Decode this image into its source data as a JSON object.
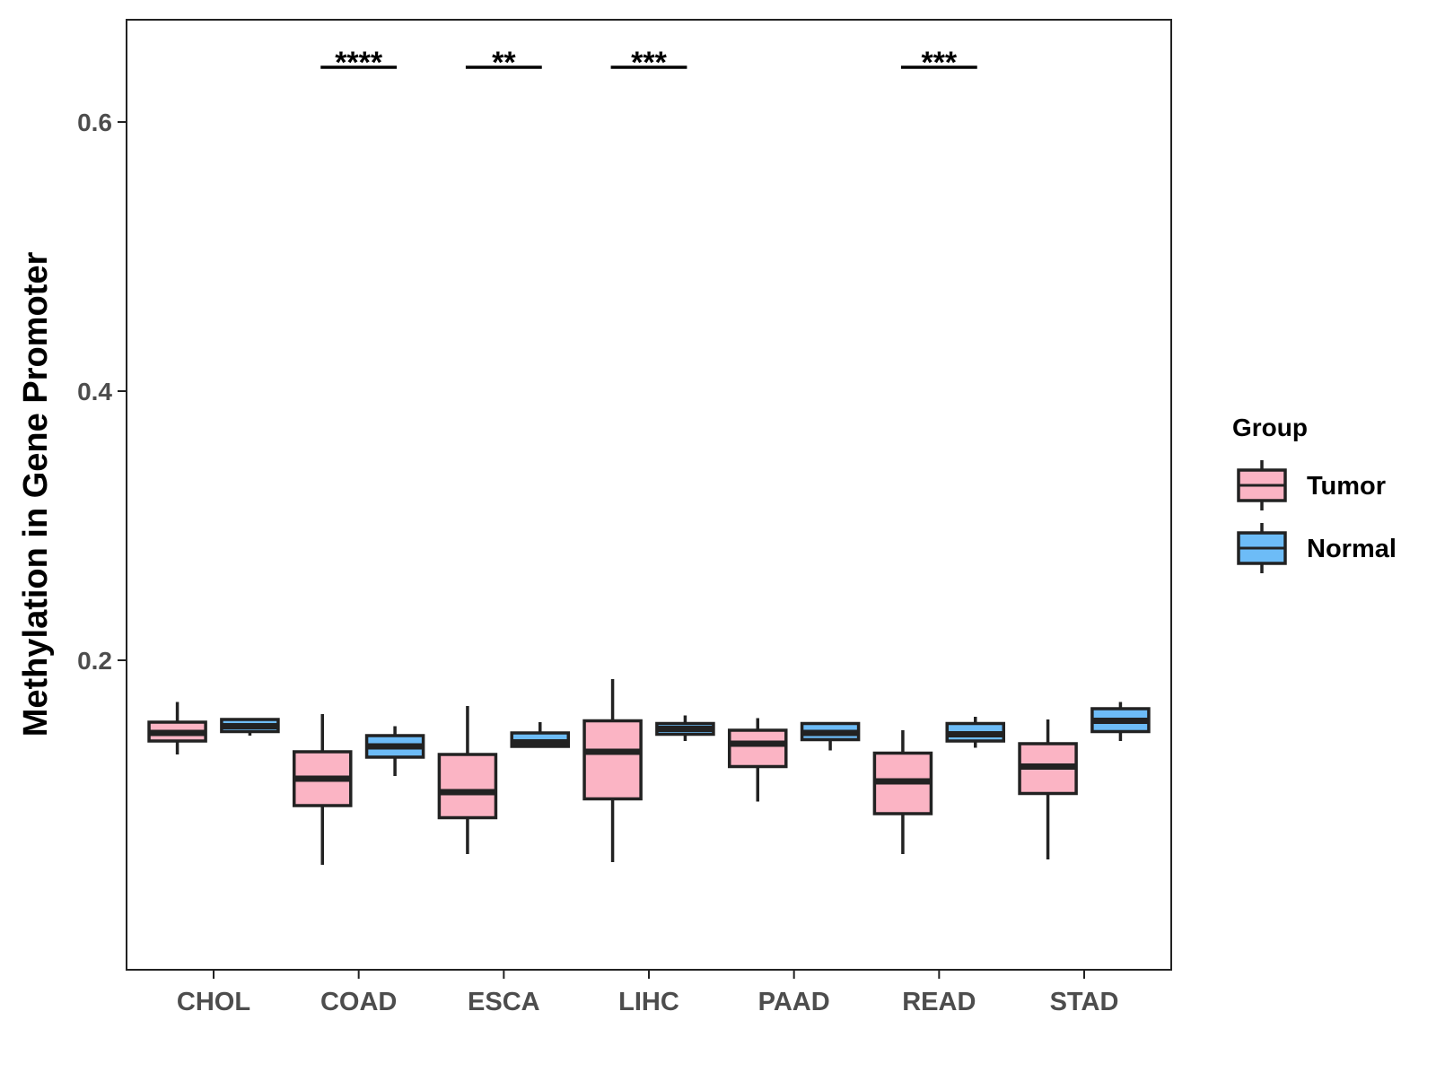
{
  "chart_data": {
    "type": "boxplot",
    "title": "",
    "xlabel": "",
    "ylabel": "Methylation in Gene Promoter",
    "ylim": [
      -0.03,
      0.676
    ],
    "yticks": [
      0.2,
      0.4,
      0.6
    ],
    "ytick_labels": [
      "0.2",
      "0.4",
      "0.6"
    ],
    "grid": false,
    "legend": {
      "title": "Group",
      "position": "right",
      "entries": [
        {
          "name": "Tumor",
          "color": "#fbb4c4"
        },
        {
          "name": "Normal",
          "color": "#6dbcf7"
        }
      ]
    },
    "categories": [
      "CHOL",
      "COAD",
      "ESCA",
      "LIHC",
      "PAAD",
      "READ",
      "STAD"
    ],
    "series": [
      {
        "name": "Tumor",
        "color": "#fbb4c4",
        "boxes": [
          {
            "category": "CHOL",
            "min": 0.13,
            "q1": 0.14,
            "median": 0.146,
            "q3": 0.154,
            "max": 0.169
          },
          {
            "category": "COAD",
            "min": 0.048,
            "q1": 0.092,
            "median": 0.112,
            "q3": 0.132,
            "max": 0.16
          },
          {
            "category": "ESCA",
            "min": 0.056,
            "q1": 0.083,
            "median": 0.102,
            "q3": 0.13,
            "max": 0.166
          },
          {
            "category": "LIHC",
            "min": 0.05,
            "q1": 0.097,
            "median": 0.132,
            "q3": 0.155,
            "max": 0.186
          },
          {
            "category": "PAAD",
            "min": 0.095,
            "q1": 0.121,
            "median": 0.138,
            "q3": 0.148,
            "max": 0.157
          },
          {
            "category": "READ",
            "min": 0.056,
            "q1": 0.086,
            "median": 0.11,
            "q3": 0.131,
            "max": 0.148
          },
          {
            "category": "STAD",
            "min": 0.052,
            "q1": 0.101,
            "median": 0.121,
            "q3": 0.138,
            "max": 0.156
          }
        ]
      },
      {
        "name": "Normal",
        "color": "#6dbcf7",
        "boxes": [
          {
            "category": "CHOL",
            "min": 0.144,
            "q1": 0.147,
            "median": 0.151,
            "q3": 0.156,
            "max": 0.156
          },
          {
            "category": "COAD",
            "min": 0.114,
            "q1": 0.128,
            "median": 0.136,
            "q3": 0.144,
            "max": 0.151
          },
          {
            "category": "ESCA",
            "min": 0.136,
            "q1": 0.136,
            "median": 0.139,
            "q3": 0.146,
            "max": 0.154
          },
          {
            "category": "LIHC",
            "min": 0.14,
            "q1": 0.145,
            "median": 0.149,
            "q3": 0.153,
            "max": 0.159
          },
          {
            "category": "PAAD",
            "min": 0.133,
            "q1": 0.141,
            "median": 0.146,
            "q3": 0.153,
            "max": 0.153
          },
          {
            "category": "READ",
            "min": 0.135,
            "q1": 0.14,
            "median": 0.145,
            "q3": 0.153,
            "max": 0.158
          },
          {
            "category": "STAD",
            "min": 0.14,
            "q1": 0.147,
            "median": 0.155,
            "q3": 0.164,
            "max": 0.169
          }
        ]
      }
    ],
    "annotations": [
      {
        "category": "COAD",
        "text": "****"
      },
      {
        "category": "ESCA",
        "text": "**"
      },
      {
        "category": "LIHC",
        "text": "***"
      },
      {
        "category": "READ",
        "text": "***"
      }
    ]
  }
}
